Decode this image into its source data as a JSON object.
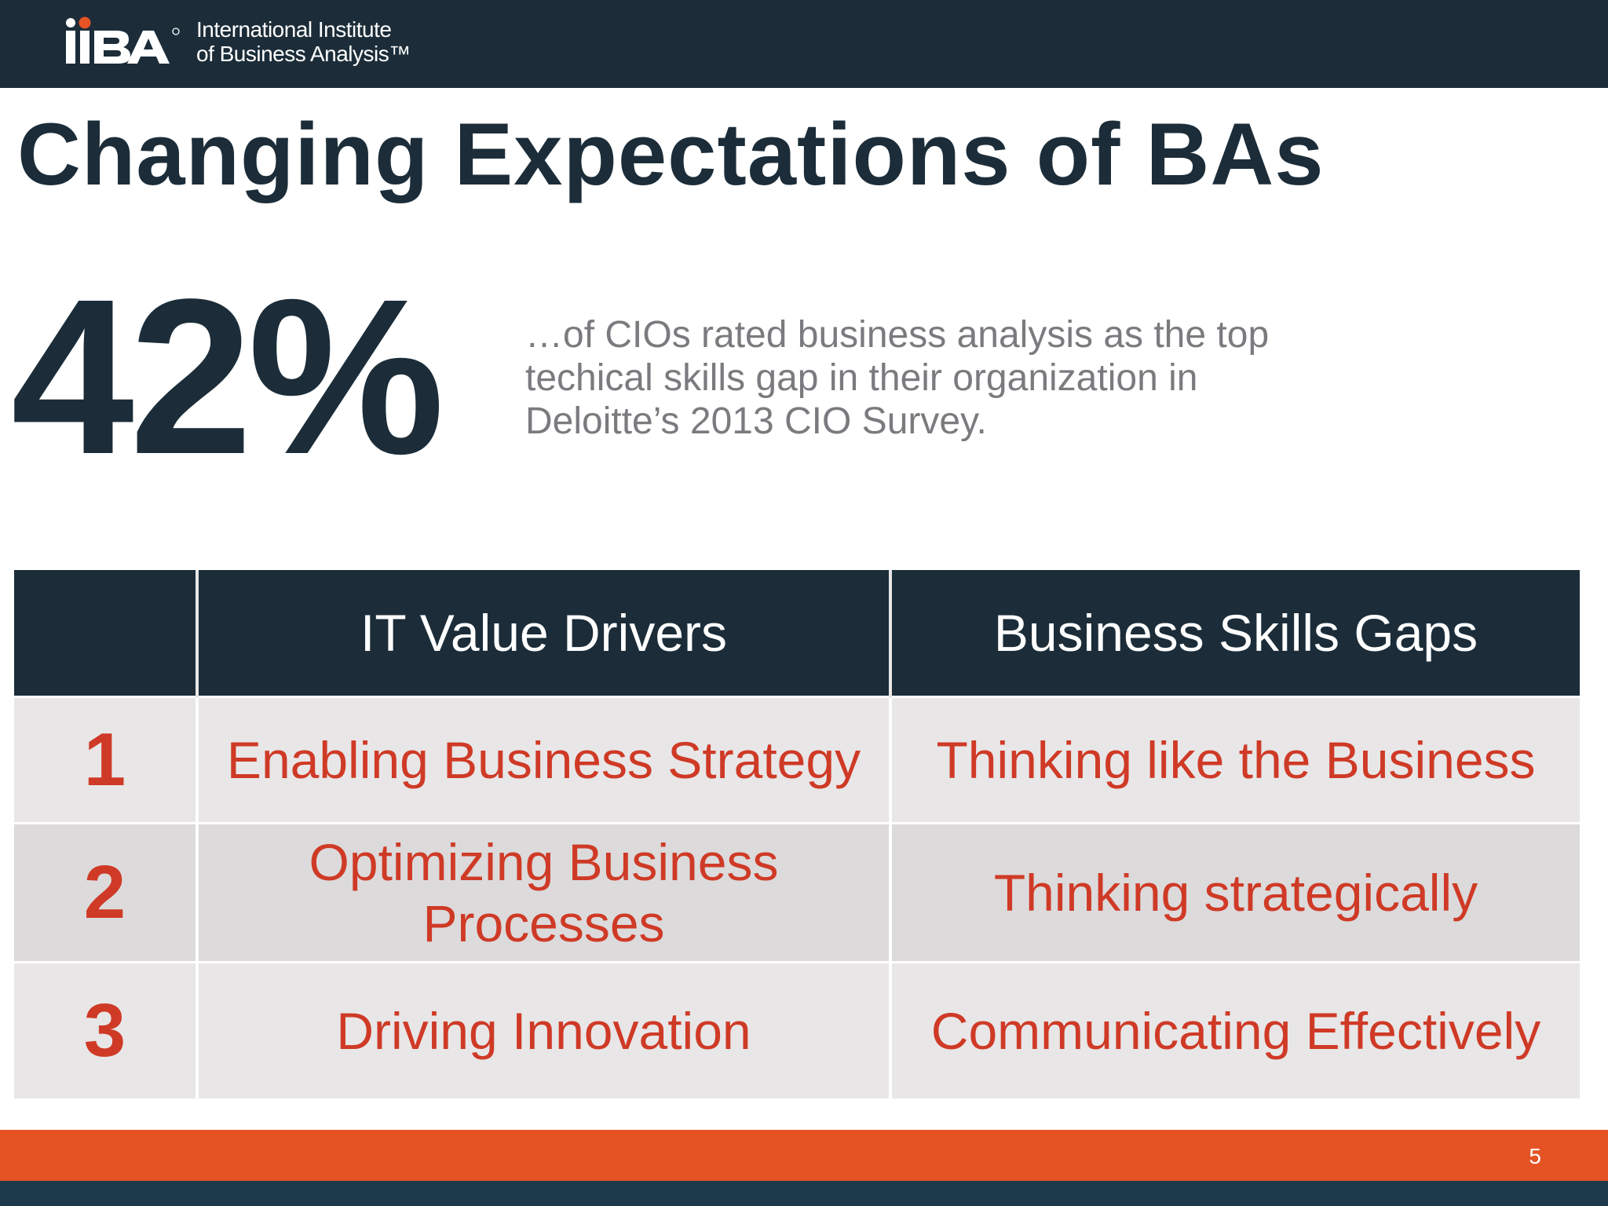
{
  "header": {
    "logo_mark": "IIBA",
    "logo_line1": "International Institute",
    "logo_line2": "of Business Analysis™"
  },
  "slide": {
    "title": "Changing Expectations of BAs",
    "stat_value": "42%",
    "stat_description": "…of CIOs rated business analysis as the top techical skills gap in their organization in Deloitte’s 2013 CIO Survey."
  },
  "table": {
    "headers": [
      "",
      "IT Value Drivers",
      "Business Skills Gaps"
    ],
    "rows": [
      [
        "1",
        "Enabling Business Strategy",
        "Thinking like the Business"
      ],
      [
        "2",
        "Optimizing Business Processes",
        "Thinking strategically"
      ],
      [
        "3",
        "Driving Innovation",
        "Communicating Effectively"
      ]
    ]
  },
  "footer": {
    "page_number": "5"
  },
  "colors": {
    "navy": "#1c2d39",
    "accent_red": "#cf3a26",
    "orange": "#e55324",
    "gray_text": "#7b7b7f"
  }
}
